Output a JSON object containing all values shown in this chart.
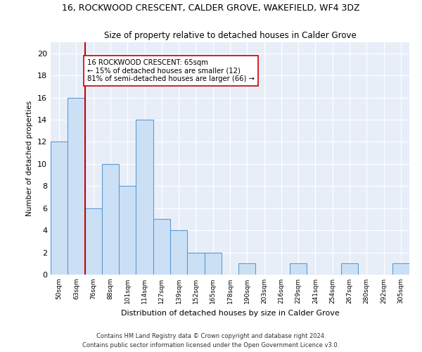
{
  "title": "16, ROCKWOOD CRESCENT, CALDER GROVE, WAKEFIELD, WF4 3DZ",
  "subtitle": "Size of property relative to detached houses in Calder Grove",
  "xlabel": "Distribution of detached houses by size in Calder Grove",
  "ylabel": "Number of detached properties",
  "bin_labels": [
    "50sqm",
    "63sqm",
    "76sqm",
    "88sqm",
    "101sqm",
    "114sqm",
    "127sqm",
    "139sqm",
    "152sqm",
    "165sqm",
    "178sqm",
    "190sqm",
    "203sqm",
    "216sqm",
    "229sqm",
    "241sqm",
    "254sqm",
    "267sqm",
    "280sqm",
    "292sqm",
    "305sqm"
  ],
  "bar_heights": [
    12,
    16,
    6,
    10,
    8,
    14,
    5,
    4,
    2,
    2,
    0,
    1,
    0,
    0,
    1,
    0,
    0,
    1,
    0,
    0,
    1
  ],
  "bar_color": "#cce0f5",
  "bar_edge_color": "#5b9bd5",
  "property_line_x": 1.5,
  "property_line_color": "#cc0000",
  "annotation_text": "16 ROCKWOOD CRESCENT: 65sqm\n← 15% of detached houses are smaller (12)\n81% of semi-detached houses are larger (66) →",
  "annotation_box_color": "#ffffff",
  "annotation_box_edge": "#cc0000",
  "ylim": [
    0,
    21
  ],
  "yticks": [
    0,
    2,
    4,
    6,
    8,
    10,
    12,
    14,
    16,
    18,
    20
  ],
  "footer_line1": "Contains HM Land Registry data © Crown copyright and database right 2024.",
  "footer_line2": "Contains public sector information licensed under the Open Government Licence v3.0.",
  "bg_color": "#ffffff",
  "plot_bg_color": "#e8eef8"
}
